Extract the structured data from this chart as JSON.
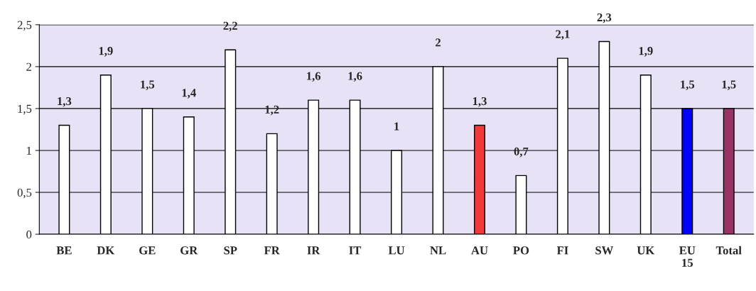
{
  "chart_data": {
    "type": "bar",
    "categories": [
      "BE",
      "DK",
      "GE",
      "GR",
      "SP",
      "FR",
      "IR",
      "IT",
      "LU",
      "NL",
      "AU",
      "PO",
      "FI",
      "SW",
      "UK",
      "EU 15",
      "Total"
    ],
    "values": [
      1.3,
      1.9,
      1.5,
      1.4,
      2.2,
      1.2,
      1.6,
      1.6,
      1,
      2,
      1.3,
      0.7,
      2.1,
      2.3,
      1.9,
      1.5,
      1.5
    ],
    "colors": [
      "#ffffff",
      "#ffffff",
      "#ffffff",
      "#ffffff",
      "#ffffff",
      "#ffffff",
      "#ffffff",
      "#ffffff",
      "#ffffff",
      "#ffffff",
      "#f03a3a",
      "#ffffff",
      "#ffffff",
      "#ffffff",
      "#ffffff",
      "#0000ff",
      "#993366"
    ],
    "value_labels": [
      "1,3",
      "1,9",
      "1,5",
      "1,4",
      "2,2",
      "1,2",
      "1,6",
      "1,6",
      "1",
      "2",
      "1,3",
      "0,7",
      "2,1",
      "2,3",
      "1,9",
      "1,5",
      "1,5"
    ],
    "ylim": [
      0,
      2.5
    ],
    "yticks": [
      0,
      {
        "value": 0.5,
        "label": "0,5"
      },
      1,
      {
        "value": 1.5,
        "label": "1,5"
      },
      2,
      {
        "value": 2.5,
        "label": "2,5"
      }
    ],
    "grid": "y"
  }
}
